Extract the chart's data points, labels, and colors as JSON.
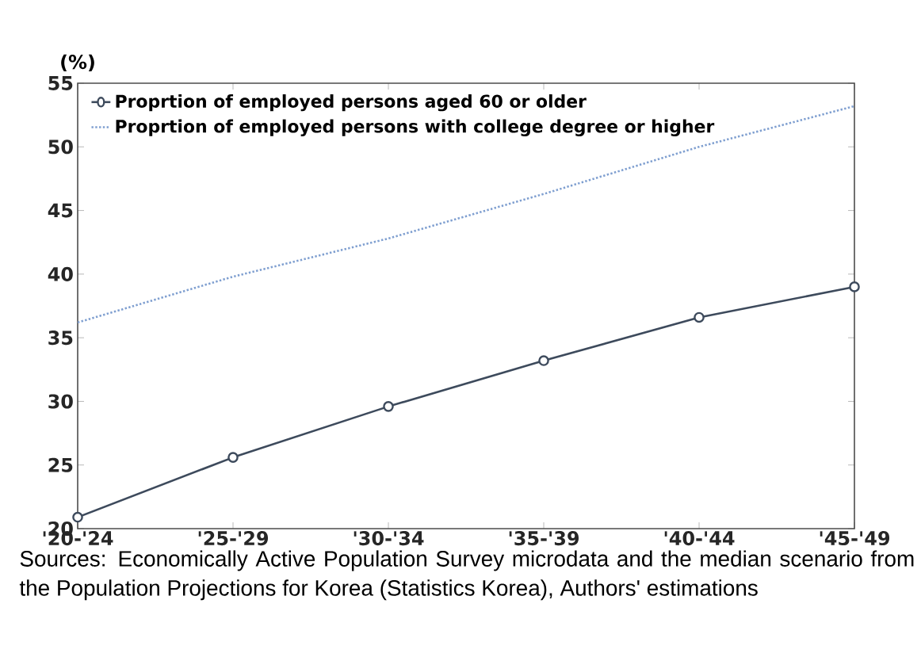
{
  "chart_data": {
    "type": "line",
    "ylabel": "(%)",
    "categories": [
      "'20-'24",
      "'25-'29",
      "'30-'34",
      "'35-'39",
      "'40-'44",
      "'45-'49"
    ],
    "series": [
      {
        "name": "Proprtion of employed persons aged 60 or older",
        "color": "#3d4a5c",
        "marker": "circle",
        "line_style": "solid",
        "values": [
          20.9,
          25.6,
          29.6,
          33.2,
          36.6,
          39.0
        ]
      },
      {
        "name": "Proprtion of employed persons with college degree or higher",
        "color": "#7f9fd0",
        "marker": "none",
        "line_style": "dotted",
        "values": [
          36.2,
          39.8,
          42.8,
          46.3,
          50.0,
          53.2
        ]
      }
    ],
    "ylim": [
      20,
      55
    ],
    "yticks": [
      20,
      25,
      30,
      35,
      40,
      45,
      50,
      55
    ],
    "grid": false,
    "legend": "top left",
    "annotations": [
      "Sources: Economically Active Population Survey microdata and the median scenario from the Population Projections for Korea (Statistics Korea), Authors' estimations"
    ]
  }
}
